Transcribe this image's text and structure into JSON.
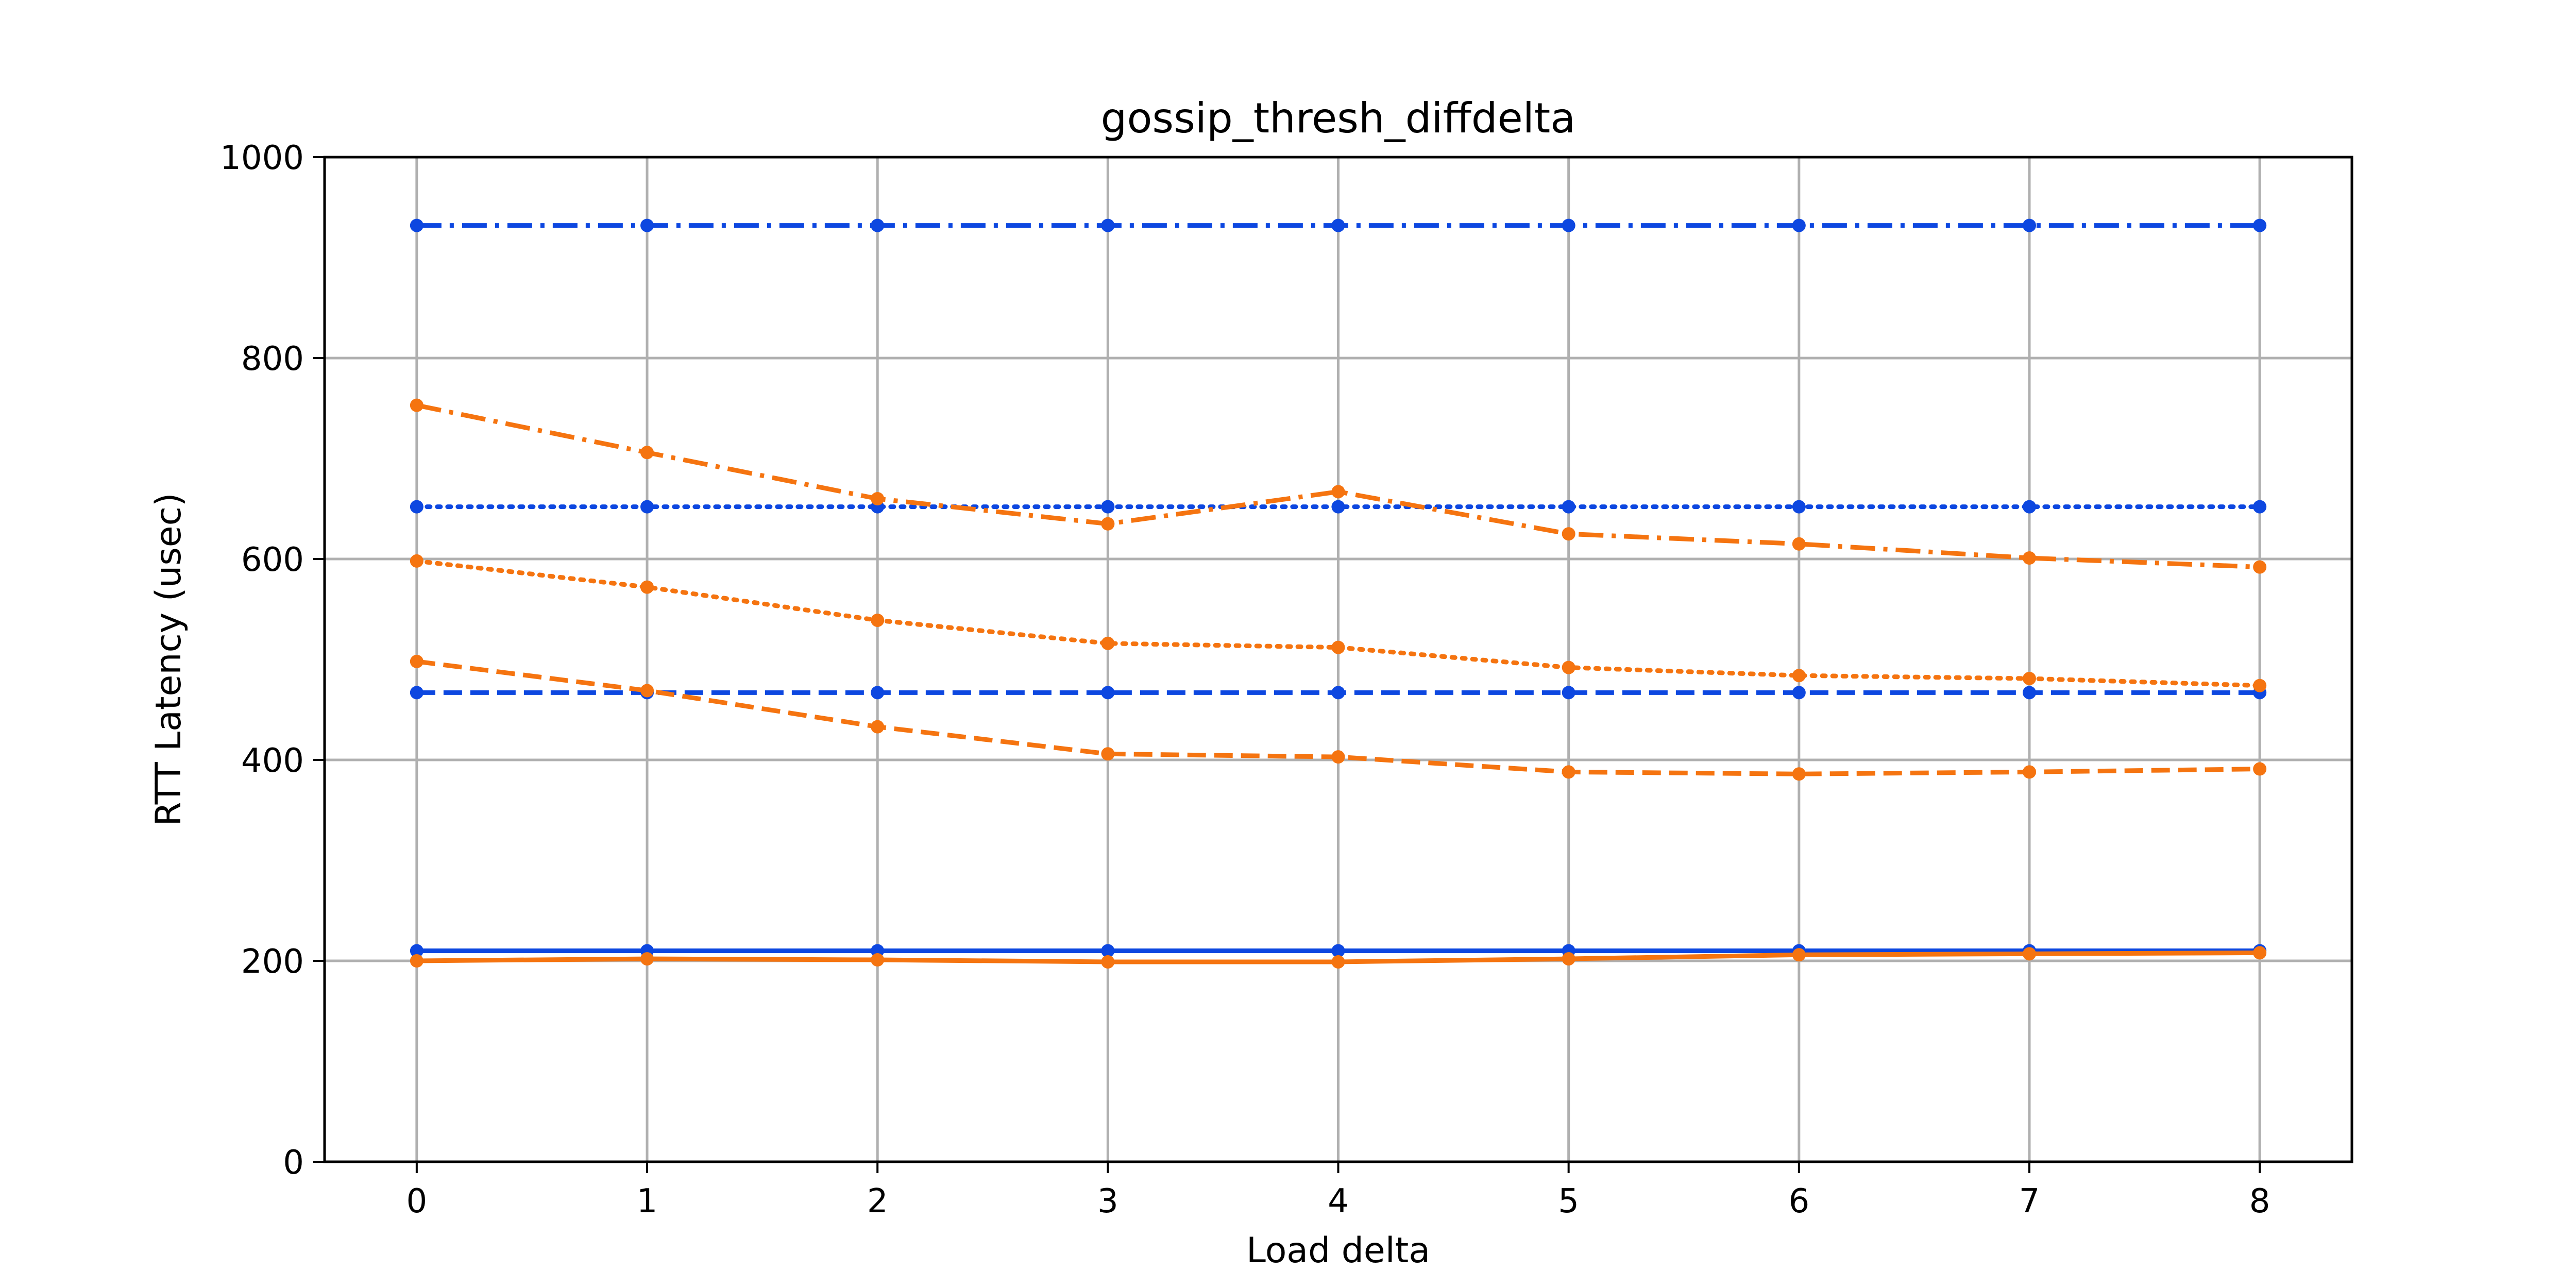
{
  "chart_data": {
    "type": "line",
    "title": "gossip_thresh_diffdelta",
    "xlabel": "Load delta",
    "ylabel": "RTT Latency (usec)",
    "x": [
      0,
      1,
      2,
      3,
      4,
      5,
      6,
      7,
      8
    ],
    "xlim": [
      -0.4,
      8.4
    ],
    "ylim": [
      0,
      1000
    ],
    "xticks": [
      "0",
      "1",
      "2",
      "3",
      "4",
      "5",
      "6",
      "7",
      "8"
    ],
    "yticks": [
      "0",
      "200",
      "400",
      "600",
      "800",
      "1000"
    ],
    "grid": true,
    "legend": "none",
    "colors": {
      "blue": "#0d47e0",
      "orange": "#f57410"
    },
    "series": [
      {
        "color": "#0d47e0",
        "linestyle": "dashdot",
        "values": [
          932,
          932,
          932,
          932,
          932,
          932,
          932,
          932,
          932
        ]
      },
      {
        "color": "#0d47e0",
        "linestyle": "dotted",
        "values": [
          652,
          652,
          652,
          652,
          652,
          652,
          652,
          652,
          652
        ]
      },
      {
        "color": "#0d47e0",
        "linestyle": "dashed",
        "values": [
          467,
          467,
          467,
          467,
          467,
          467,
          467,
          467,
          467
        ]
      },
      {
        "color": "#0d47e0",
        "linestyle": "solid",
        "values": [
          210,
          210,
          210,
          210,
          210,
          210,
          210,
          210,
          210
        ]
      },
      {
        "color": "#f57410",
        "linestyle": "dashdot",
        "values": [
          753,
          706,
          660,
          635,
          667,
          625,
          615,
          601,
          592
        ]
      },
      {
        "color": "#f57410",
        "linestyle": "dotted",
        "values": [
          598,
          572,
          539,
          516,
          512,
          492,
          484,
          481,
          474
        ]
      },
      {
        "color": "#f57410",
        "linestyle": "dashed",
        "values": [
          498,
          469,
          433,
          406,
          403,
          388,
          386,
          388,
          391
        ]
      },
      {
        "color": "#f57410",
        "linestyle": "solid",
        "values": [
          200,
          202,
          201,
          199,
          199,
          202,
          206,
          207,
          208
        ]
      }
    ]
  }
}
